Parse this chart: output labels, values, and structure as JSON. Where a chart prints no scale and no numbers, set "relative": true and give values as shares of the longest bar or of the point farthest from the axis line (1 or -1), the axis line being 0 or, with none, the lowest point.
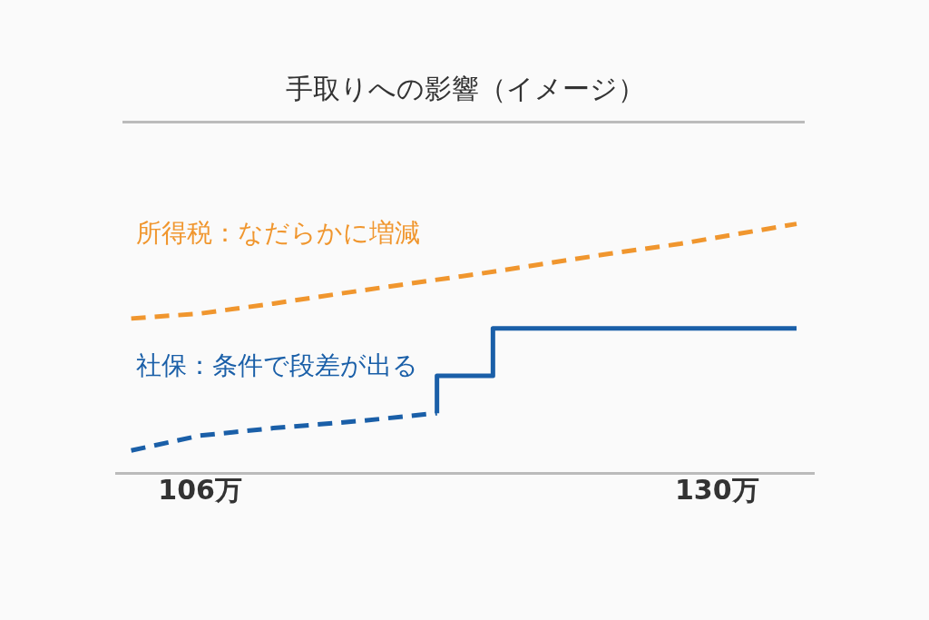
{
  "chart_data": {
    "type": "line",
    "title": "手取りへの影響（イメージ）",
    "relative": true,
    "tick_labels": "x",
    "xlim": [
      102.1,
      134.5
    ],
    "xticks": [
      {
        "value": 106,
        "label": "106万"
      },
      {
        "value": 130,
        "label": "130万"
      }
    ],
    "series": [
      {
        "name": "所得税：なだらかに増減",
        "color": "#f0962e",
        "line_style": "dashed",
        "x": [
          102.8,
          106,
          109.4,
          112.5,
          115.7,
          119,
          122,
          125,
          128.3,
          131,
          133.7
        ],
        "values": [
          0.62,
          0.64,
          0.68,
          0.72,
          0.76,
          0.8,
          0.84,
          0.88,
          0.92,
          0.96,
          1.0
        ]
      },
      {
        "name": "社保：条件で段差が出る",
        "color": "#1a5fa8",
        "line_style": "dashed",
        "x": [
          102.8,
          106,
          109.4,
          113.6,
          117.0
        ],
        "values": [
          0.09,
          0.15,
          0.18,
          0.21,
          0.24
        ]
      },
      {
        "color": "#1a5fa8",
        "line_style": "solid",
        "x": [
          117.0,
          117.0,
          119.6,
          119.6,
          133.7
        ],
        "values": [
          0.24,
          0.39,
          0.39,
          0.58,
          0.58
        ]
      }
    ]
  }
}
